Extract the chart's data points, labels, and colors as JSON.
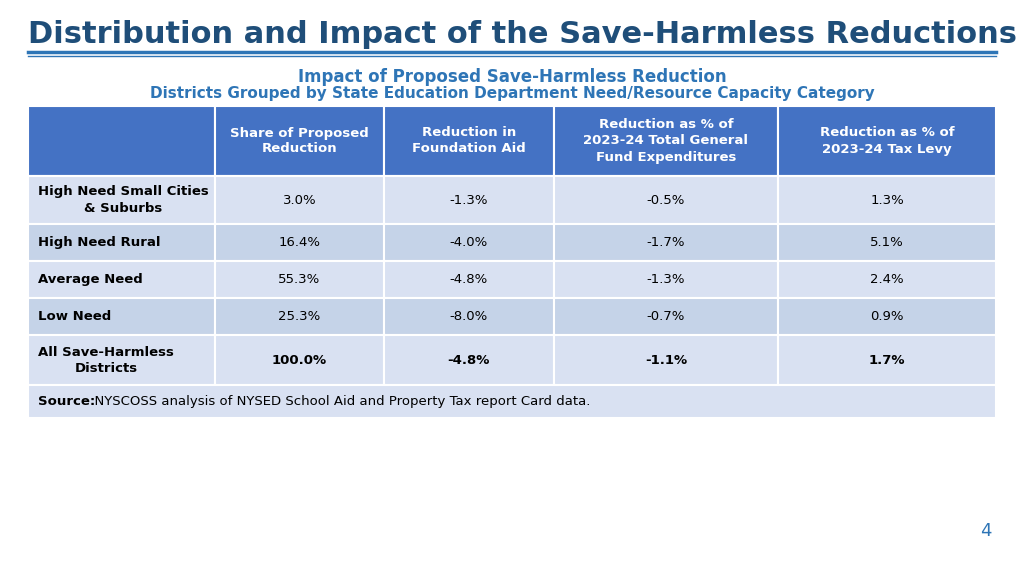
{
  "title": "Distribution and Impact of the Save-Harmless Reductions",
  "subtitle1": "Impact of Proposed Save-Harmless Reduction",
  "subtitle2": "Districts Grouped by State Education Department Need/Resource Capacity Category",
  "title_color": "#1F4E79",
  "subtitle_color": "#2E75B6",
  "header_bg": "#4472C4",
  "header_text_color": "#FFFFFF",
  "row_bg_light": "#D9E1F2",
  "row_bg_dark": "#C5D3E8",
  "footer_bg": "#D9E1F2",
  "col_headers": [
    "",
    "Share of Proposed\nReduction",
    "Reduction in\nFoundation Aid",
    "Reduction as % of\n2023-24 Total General\nFund Expenditures",
    "Reduction as % of\n2023-24 Tax Levy"
  ],
  "rows": [
    [
      "High Need Small Cities\n& Suburbs",
      "3.0%",
      "-1.3%",
      "-0.5%",
      "1.3%"
    ],
    [
      "High Need Rural",
      "16.4%",
      "-4.0%",
      "-1.7%",
      "5.1%"
    ],
    [
      "Average Need",
      "55.3%",
      "-4.8%",
      "-1.3%",
      "2.4%"
    ],
    [
      "Low Need",
      "25.3%",
      "-8.0%",
      "-0.7%",
      "0.9%"
    ],
    [
      "All Save-Harmless\nDistricts",
      "100.0%",
      "-4.8%",
      "-1.1%",
      "1.7%"
    ]
  ],
  "source_label": "Source:",
  "source_rest": "  NYSCOSS analysis of NYSED School Aid and Property Tax report Card data.",
  "page_number": "4",
  "bg_color": "#FFFFFF",
  "line_color": "#2E75B6"
}
